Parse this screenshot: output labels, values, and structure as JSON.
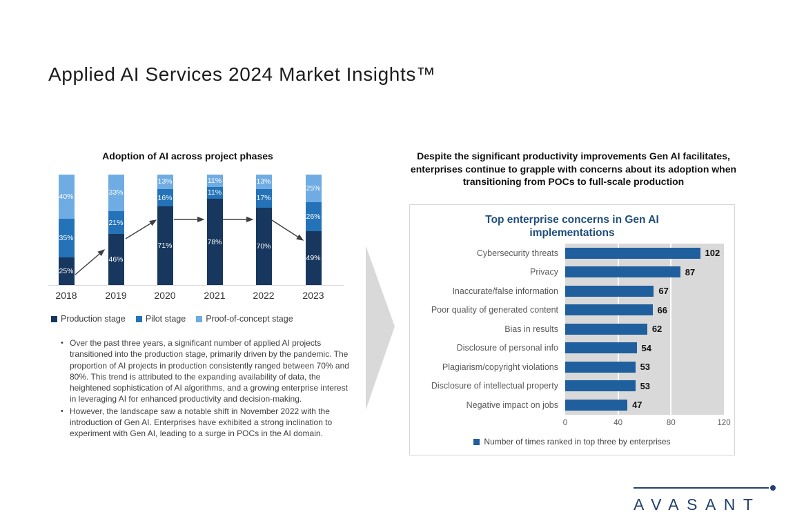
{
  "slide": {
    "title": "Applied AI Services 2024 Market Insights™"
  },
  "left_section": {
    "bullets": [
      "Over the past three years, a significant number of applied AI projects transitioned into the production stage, primarily driven by the pandemic. The proportion of AI projects in production consistently ranged between 70% and 80%. This trend is attributed to the expanding availability of data, the heightened sophistication of AI algorithms, and a growing enterprise interest in leveraging AI for enhanced productivity and decision-making.",
      "However, the landscape saw a notable shift in November 2022 with the introduction of Gen AI. Enterprises have exhibited a strong inclination to experiment with Gen AI, leading to a surge in POCs in the AI domain."
    ]
  },
  "right_section": {
    "heading": "Despite the significant productivity improvements Gen AI facilitates, enterprises continue to grapple with concerns about its adoption when transitioning from POCs to full-scale production"
  },
  "chart_data": [
    {
      "type": "bar",
      "stacked": true,
      "orientation": "vertical",
      "title": "Adoption of AI across project phases",
      "categories": [
        "2018",
        "2019",
        "2020",
        "2021",
        "2022",
        "2023"
      ],
      "series": [
        {
          "name": "Production stage",
          "color": "#17375E",
          "values": [
            25,
            46,
            71,
            78,
            70,
            49
          ]
        },
        {
          "name": "Pilot stage",
          "color": "#2473B8",
          "values": [
            35,
            21,
            16,
            11,
            17,
            26
          ]
        },
        {
          "name": "Proof-of-concept stage",
          "color": "#6FACE3",
          "values": [
            40,
            33,
            13,
            11,
            13,
            25
          ]
        }
      ],
      "value_suffix": "%",
      "ylim": [
        0,
        100
      ],
      "grid": false,
      "legend_position": "bottom",
      "annotations": "arrows trace the production-stage level change year over year"
    },
    {
      "type": "bar",
      "orientation": "horizontal",
      "title": "Top enterprise concerns in Gen AI implementations",
      "categories": [
        "Cybersecurity threats",
        "Privacy",
        "Inaccurate/false information",
        "Poor quality of generated content",
        "Bias in results",
        "Disclosure of personal info",
        "Plagiarism/copyright violations",
        "Disclosure of intellectual property",
        "Negative impact on jobs"
      ],
      "values": [
        102,
        87,
        67,
        66,
        62,
        54,
        53,
        53,
        47
      ],
      "xlim": [
        0,
        120
      ],
      "ticks": [
        0,
        40,
        80,
        120
      ],
      "gridlines_at": [
        40,
        80
      ],
      "legend": "Number of times ranked in top three by enterprises",
      "bar_color": "#1F5F9E",
      "plot_bg": "#D9D9D9",
      "title_color": "#1F4E79"
    }
  ],
  "footer": {
    "logo_text": "AVASANT",
    "logo_color": "#24406E"
  }
}
